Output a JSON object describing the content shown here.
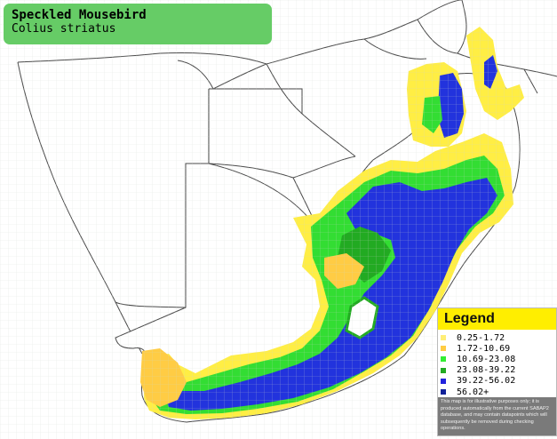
{
  "title": "Speckled Mousebird",
  "subtitle": "Colius striatus",
  "legend": {
    "title": "Legend",
    "items": [
      {
        "label": "0.25-1.72",
        "color": "#ffee77"
      },
      {
        "label": "1.72-10.69",
        "color": "#ffcc44"
      },
      {
        "label": "10.69-23.08",
        "color": "#33ee33"
      },
      {
        "label": "23.08-39.22",
        "color": "#22aa22"
      },
      {
        "label": "39.22-56.02",
        "color": "#2222dd"
      },
      {
        "label": "56.02+",
        "color": "#112299"
      }
    ],
    "disclaimer": "This map is for illustrative purposes only; it is produced automatically from the current SABAP2 database, and may contain datapoints which will subsequently be removed during checking operations."
  },
  "map_colors": {
    "background": "#ffffff",
    "borders": "#555555",
    "grid": "#d8d8d8"
  }
}
